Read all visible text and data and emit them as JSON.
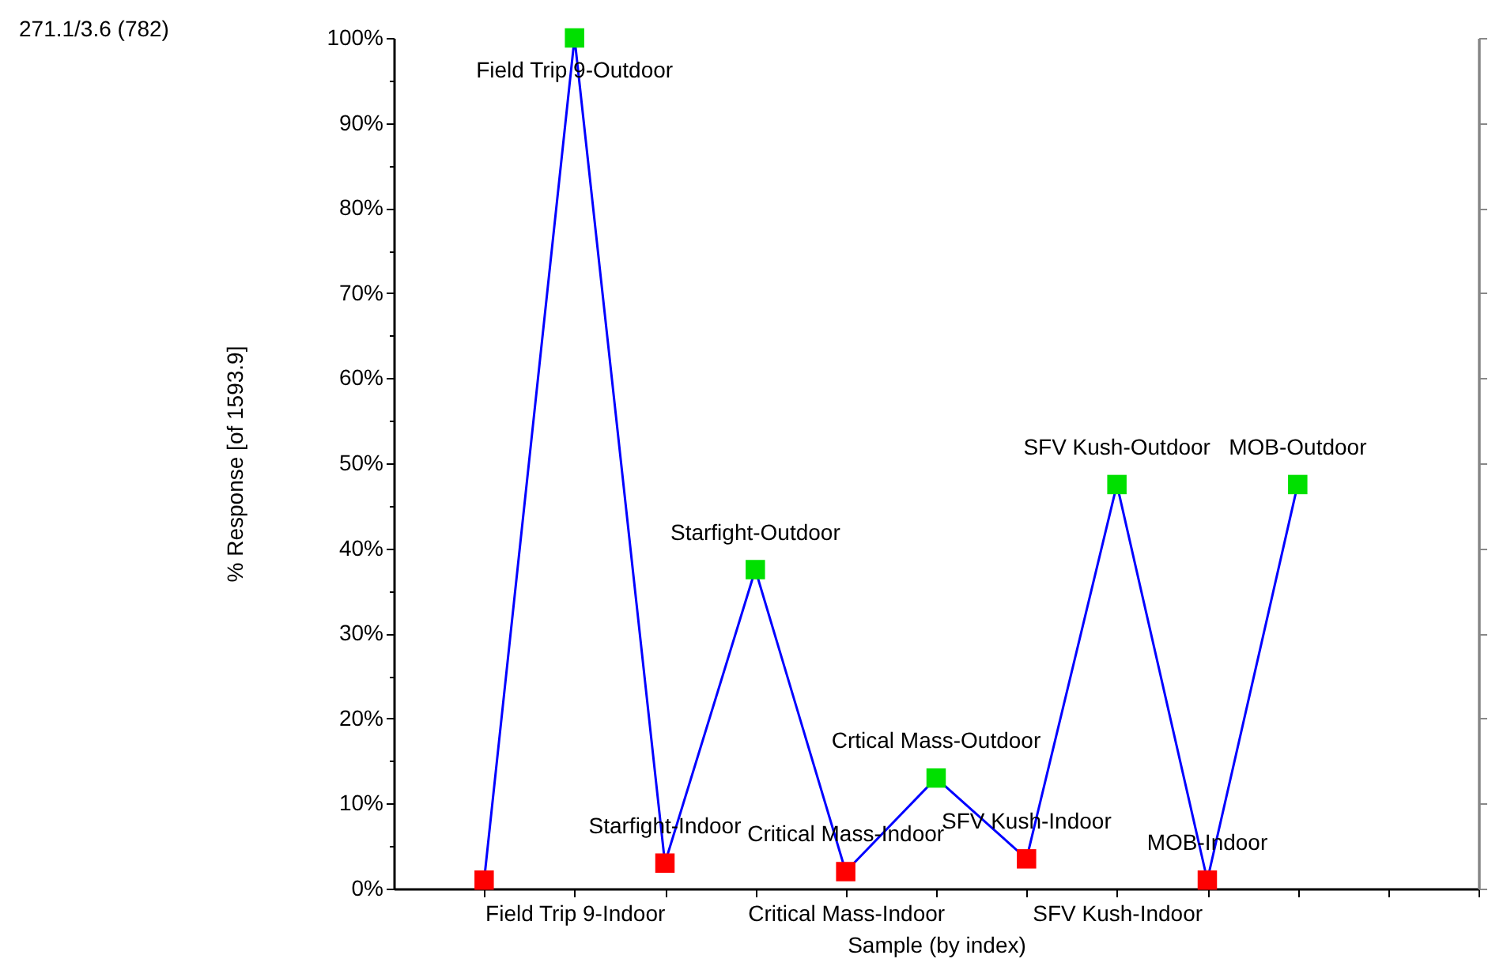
{
  "chart_data": {
    "type": "line",
    "xlabel": "Sample (by index)",
    "ylabel": "% Response [of 1593.9]",
    "categories": [
      null,
      "Field Trip 9-Indoor",
      null,
      null,
      "Critical Mass-Indoor",
      null,
      null,
      "SFV Kush-Indoor",
      null,
      null,
      null,
      null
    ],
    "series": [
      {
        "color": "#0000ff",
        "colors": [
          "#ff0000",
          "#00e000",
          "#ff0000",
          "#00e000",
          "#ff0000",
          "#00e000",
          "#ff0000",
          "#00e000",
          "#ff0000",
          "#00e000",
          null,
          null
        ],
        "values": [
          1,
          100,
          3,
          37.5,
          2,
          13,
          3.5,
          47.5,
          1,
          47.5,
          null,
          null
        ],
        "value_labels": [
          null,
          "Field Trip 9-Outdoor",
          "Starfight-Indoor",
          "Starfight-Outdoor",
          "Critical Mass-Indoor",
          "Crtical Mass-Outdoor",
          "SFV Kush-Indoor",
          "SFV Kush-Outdoor",
          "MOB-Indoor",
          "MOB-Outdoor",
          null,
          null
        ]
      }
    ],
    "marker": "square",
    "grid": false,
    "ylim": [
      0,
      100
    ],
    "yticks": [
      {
        "value": 0,
        "label": "0%"
      },
      {
        "value": 5,
        "label": null
      },
      {
        "value": 10,
        "label": "10%"
      },
      {
        "value": 15,
        "label": null
      },
      {
        "value": 20,
        "label": "20%"
      },
      {
        "value": 25,
        "label": null
      },
      {
        "value": 30,
        "label": "30%"
      },
      {
        "value": 35,
        "label": null
      },
      {
        "value": 40,
        "label": "40%"
      },
      {
        "value": 45,
        "label": null
      },
      {
        "value": 50,
        "label": "50%"
      },
      {
        "value": 55,
        "label": null
      },
      {
        "value": 60,
        "label": "60%"
      },
      {
        "value": 65,
        "label": null
      },
      {
        "value": 70,
        "label": "70%"
      },
      {
        "value": 75,
        "label": null
      },
      {
        "value": 80,
        "label": "80%"
      },
      {
        "value": 85,
        "label": null
      },
      {
        "value": 90,
        "label": "90%"
      },
      {
        "value": 95,
        "label": null
      },
      {
        "value": 100,
        "label": "100%"
      }
    ],
    "annotations": [
      "271.1/3.6 (782)"
    ]
  }
}
